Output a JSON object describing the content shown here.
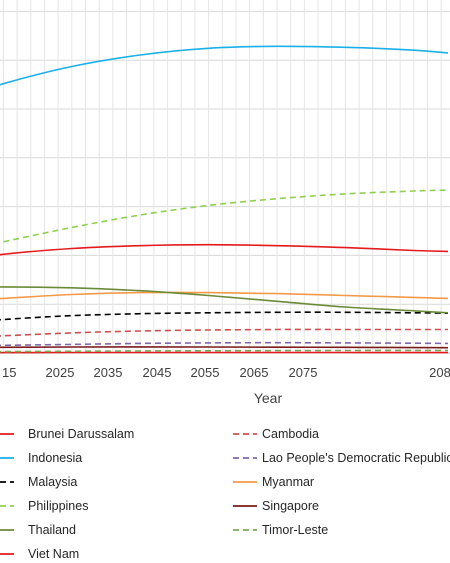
{
  "chart_data": {
    "type": "line",
    "xlabel": "Year",
    "ylabel": "",
    "title": "",
    "x_ticks": [
      "15",
      "2025",
      "2035",
      "2045",
      "2055",
      "2065",
      "2075",
      "208"
    ],
    "xlim": [
      2015,
      2090
    ],
    "ylim": [
      0,
      360
    ],
    "grid": true,
    "legend_position": "bottom",
    "x": [
      2015,
      2025,
      2035,
      2045,
      2055,
      2065,
      2075,
      2085,
      2090
    ],
    "series": [
      {
        "name": "Brunei Darussalam",
        "color": "#e41a1c",
        "dash": "solid",
        "values": [
          0.4,
          0.45,
          0.5,
          0.5,
          0.5,
          0.5,
          0.48,
          0.46,
          0.45
        ]
      },
      {
        "name": "Cambodia",
        "color": "#d05050",
        "dash": "dashed",
        "values": [
          15,
          18,
          21,
          23,
          24,
          24.5,
          24.5,
          24.5,
          24.5
        ]
      },
      {
        "name": "Indonesia",
        "color": "#1ab0e8",
        "dash": "solid",
        "values": [
          258,
          281,
          299,
          311,
          318,
          320,
          319,
          316,
          313
        ]
      },
      {
        "name": "Lao People's Democratic Republic",
        "color": "#8068b0",
        "dash": "dashed",
        "values": [
          6.7,
          8,
          9,
          10,
          10.5,
          10.7,
          10.5,
          10.2,
          10
        ]
      },
      {
        "name": "Malaysia",
        "color": "#000000",
        "dash": "dashed",
        "values": [
          30,
          35,
          39,
          41,
          42,
          42.5,
          42.5,
          42,
          41.5
        ]
      },
      {
        "name": "Myanmar",
        "color": "#f39a48",
        "dash": "solid",
        "values": [
          53,
          57,
          61,
          63,
          63,
          62,
          60,
          58,
          57
        ]
      },
      {
        "name": "Philippines",
        "color": "#90d050",
        "dash": "dashed",
        "values": [
          101,
          116,
          131,
          144,
          154,
          161,
          166,
          169,
          170
        ]
      },
      {
        "name": "Singapore",
        "color": "#7a1a1a",
        "dash": "solid",
        "values": [
          5.6,
          6,
          6.3,
          6.4,
          6.3,
          6.1,
          5.9,
          5.6,
          5.5
        ]
      },
      {
        "name": "Thailand",
        "color": "#6b8b38",
        "dash": "solid",
        "values": [
          68,
          69,
          68,
          65,
          60,
          54,
          48,
          44,
          42
        ]
      },
      {
        "name": "Timor-Leste",
        "color": "#7aaa5a",
        "dash": "dashed",
        "values": [
          1.2,
          1.5,
          1.8,
          2.1,
          2.3,
          2.5,
          2.6,
          2.7,
          2.7
        ]
      },
      {
        "name": "Viet Nam",
        "color": "#e41a1c",
        "dash": "solid",
        "values": [
          93,
          103,
          109,
          112,
          113,
          112,
          110,
          107,
          106
        ]
      }
    ]
  }
}
